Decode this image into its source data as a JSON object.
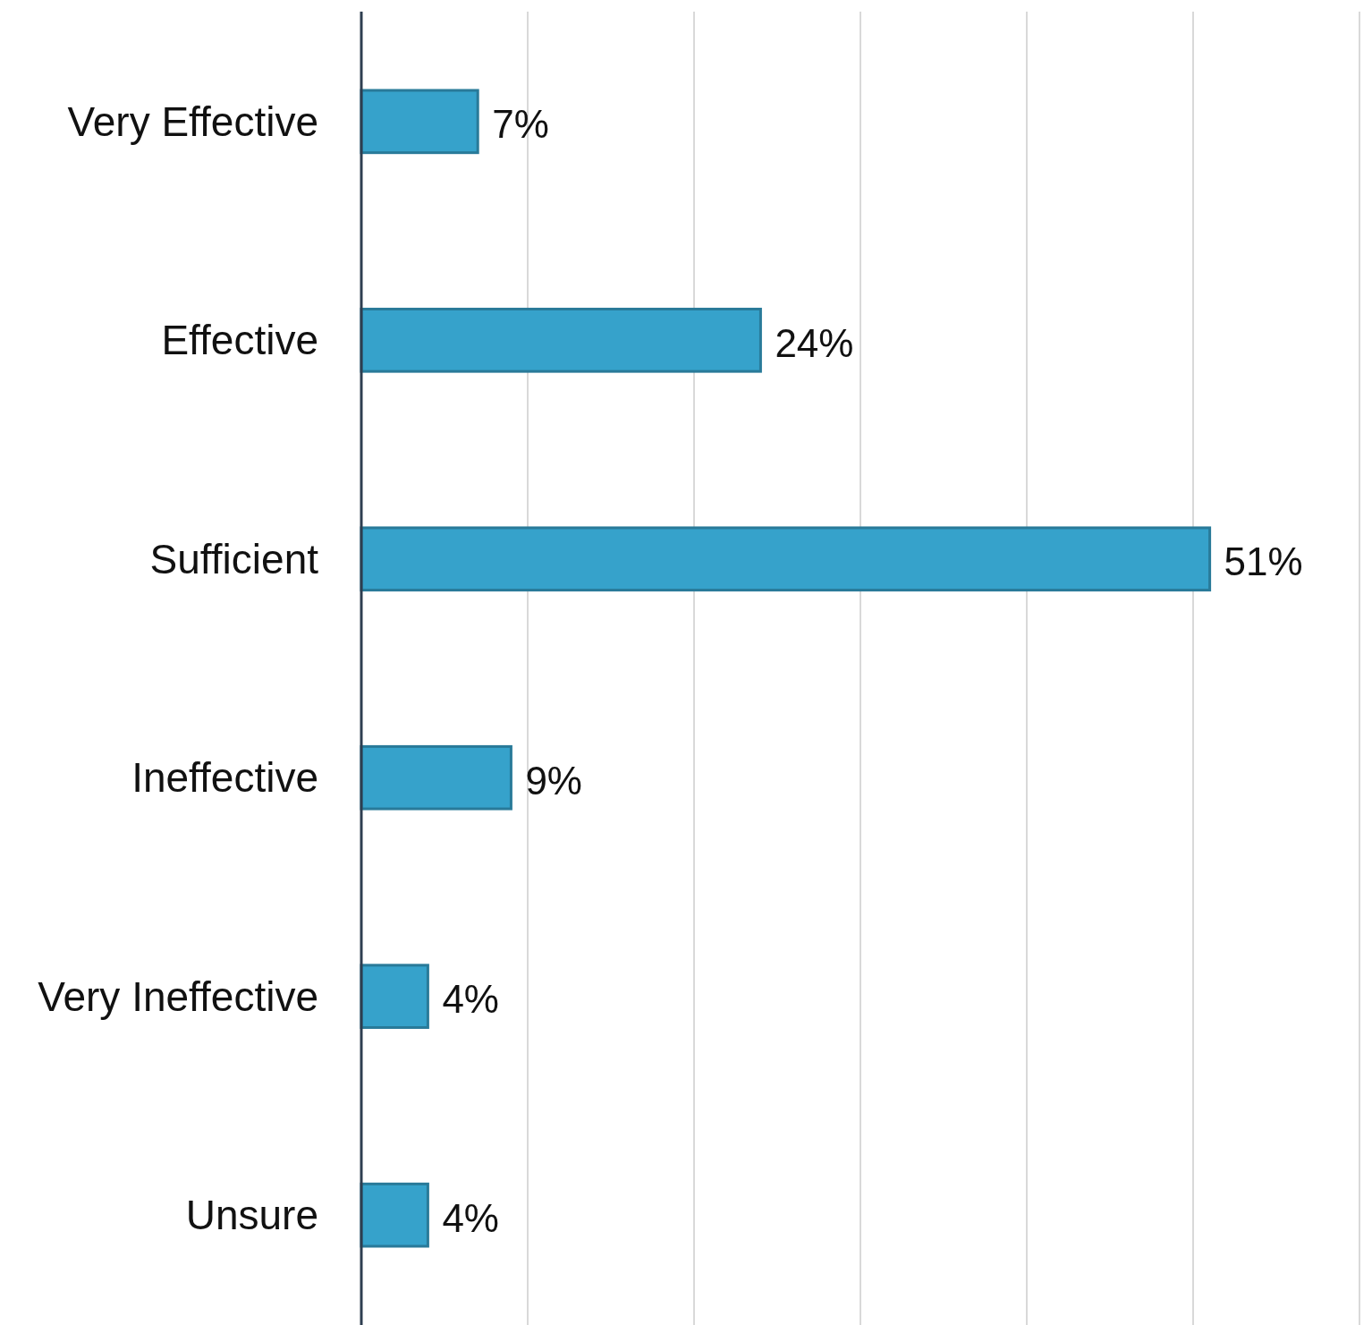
{
  "chart_data": {
    "type": "bar",
    "orientation": "horizontal",
    "categories": [
      "Very Effective",
      "Effective",
      "Sufficient",
      "Ineffective",
      "Very Ineffective",
      "Unsure"
    ],
    "values": [
      7,
      24,
      51,
      9,
      4,
      4
    ],
    "color": "#36a2cb",
    "value_labels": [
      "7%",
      "24%",
      "51%",
      "9%",
      "4%",
      "4%"
    ],
    "xlim": [
      0,
      60
    ],
    "xticks": [
      {
        "value": 0,
        "label": null
      },
      {
        "value": 10,
        "label": null
      },
      {
        "value": 20,
        "label": null
      },
      {
        "value": 30,
        "label": null
      },
      {
        "value": 40,
        "label": null
      },
      {
        "value": 50,
        "label": null
      },
      {
        "value": 60,
        "label": null
      }
    ],
    "grid": "x",
    "tick_labels": "y"
  }
}
